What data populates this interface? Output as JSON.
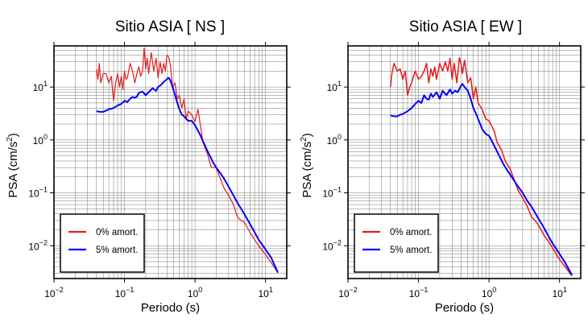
{
  "chart_data": [
    {
      "type": "line",
      "title": "Sitio ASIA [ NS ]",
      "xlabel": "Periodo (s)",
      "ylabel_text": "PSA (cm/s",
      "ylabel_sup": "2",
      "ylabel_close": ")",
      "x_scale": "log",
      "y_scale": "log",
      "xlim": [
        0.01,
        20
      ],
      "ylim": [
        0.0024,
        60
      ],
      "grid": true,
      "legend_position": "bottom-left",
      "x_ticks": [
        {
          "value": 0.01,
          "base": "10",
          "exp": "−2"
        },
        {
          "value": 0.1,
          "base": "10",
          "exp": "−1"
        },
        {
          "value": 1,
          "base": "10",
          "exp": "0"
        },
        {
          "value": 10,
          "base": "10",
          "exp": "1"
        }
      ],
      "y_ticks": [
        {
          "value": 0.01,
          "base": "10",
          "exp": "−2"
        },
        {
          "value": 0.1,
          "base": "10",
          "exp": "−1"
        },
        {
          "value": 1,
          "base": "10",
          "exp": "0"
        },
        {
          "value": 10,
          "base": "10",
          "exp": "1"
        }
      ],
      "series": [
        {
          "name": "0% amort.",
          "color": "#e41a1c",
          "width": 1.2,
          "x": [
            0.04,
            0.042,
            0.044,
            0.046,
            0.05,
            0.055,
            0.06,
            0.065,
            0.07,
            0.075,
            0.08,
            0.085,
            0.09,
            0.095,
            0.1,
            0.105,
            0.11,
            0.12,
            0.13,
            0.14,
            0.15,
            0.16,
            0.17,
            0.18,
            0.19,
            0.2,
            0.21,
            0.22,
            0.24,
            0.26,
            0.28,
            0.3,
            0.32,
            0.34,
            0.36,
            0.38,
            0.4,
            0.42,
            0.45,
            0.48,
            0.52,
            0.56,
            0.6,
            0.65,
            0.7,
            0.75,
            0.8,
            0.9,
            1.0,
            1.1,
            1.2,
            1.3,
            1.5,
            1.7,
            2.0,
            2.3,
            2.6,
            3.0,
            3.5,
            4.0,
            4.5,
            5.0,
            6.0,
            7.0,
            8.0,
            10.0,
            12.0,
            15.0
          ],
          "y": [
            22,
            14,
            28,
            12,
            18,
            18,
            12,
            16,
            5.5,
            12,
            18,
            10,
            16,
            9,
            20,
            14,
            15,
            28,
            20,
            12,
            18,
            24,
            16,
            20,
            55,
            22,
            35,
            18,
            45,
            20,
            35,
            15,
            30,
            18,
            28,
            20,
            40,
            38,
            25,
            10,
            12,
            6,
            7,
            4,
            6,
            2.5,
            3.5,
            3.0,
            2.2,
            3.8,
            1.8,
            0.9,
            0.55,
            0.3,
            0.3,
            0.18,
            0.12,
            0.09,
            0.06,
            0.035,
            0.03,
            0.028,
            0.018,
            0.013,
            0.01,
            0.0068,
            0.0048,
            0.0031
          ]
        },
        {
          "name": "5% amort.",
          "color": "#0000ff",
          "width": 2.0,
          "x": [
            0.04,
            0.045,
            0.05,
            0.055,
            0.06,
            0.065,
            0.07,
            0.08,
            0.09,
            0.1,
            0.11,
            0.12,
            0.13,
            0.14,
            0.15,
            0.16,
            0.18,
            0.2,
            0.22,
            0.25,
            0.28,
            0.3,
            0.33,
            0.36,
            0.4,
            0.42,
            0.44,
            0.47,
            0.5,
            0.55,
            0.6,
            0.65,
            0.7,
            0.75,
            0.8,
            0.9,
            1.0,
            1.1,
            1.2,
            1.4,
            1.6,
            1.8,
            2.0,
            2.5,
            3.0,
            3.5,
            4.0,
            5.0,
            6.0,
            7.0,
            8.0,
            10.0,
            12.0,
            15.0
          ],
          "y": [
            3.5,
            3.4,
            3.4,
            3.6,
            3.8,
            3.9,
            4.0,
            4.5,
            4.8,
            5.5,
            5.2,
            6.0,
            6.5,
            6.3,
            6.6,
            7.8,
            8.2,
            7.0,
            8.0,
            9.5,
            8.5,
            10.0,
            11.0,
            12.5,
            14.0,
            15.0,
            14.0,
            11.0,
            8.5,
            5.5,
            3.8,
            3.0,
            2.8,
            2.5,
            2.3,
            2.3,
            1.9,
            1.5,
            1.2,
            0.75,
            0.52,
            0.38,
            0.3,
            0.2,
            0.13,
            0.09,
            0.065,
            0.04,
            0.026,
            0.018,
            0.013,
            0.0085,
            0.006,
            0.0031
          ]
        }
      ]
    },
    {
      "type": "line",
      "title": "Sitio ASIA [ EW ]",
      "xlabel": "Periodo (s)",
      "ylabel_text": "PSA (cm/s",
      "ylabel_sup": "2",
      "ylabel_close": ")",
      "x_scale": "log",
      "y_scale": "log",
      "xlim": [
        0.01,
        20
      ],
      "ylim": [
        0.0024,
        60
      ],
      "grid": true,
      "legend_position": "bottom-left",
      "x_ticks": [
        {
          "value": 0.01,
          "base": "10",
          "exp": "−2"
        },
        {
          "value": 0.1,
          "base": "10",
          "exp": "−1"
        },
        {
          "value": 1,
          "base": "10",
          "exp": "0"
        },
        {
          "value": 10,
          "base": "10",
          "exp": "1"
        }
      ],
      "y_ticks": [
        {
          "value": 0.01,
          "base": "10",
          "exp": "−2"
        },
        {
          "value": 0.1,
          "base": "10",
          "exp": "−1"
        },
        {
          "value": 1,
          "base": "10",
          "exp": "0"
        },
        {
          "value": 10,
          "base": "10",
          "exp": "1"
        }
      ],
      "series": [
        {
          "name": "0% amort.",
          "color": "#e41a1c",
          "width": 1.5,
          "x": [
            0.04,
            0.042,
            0.045,
            0.05,
            0.055,
            0.06,
            0.065,
            0.07,
            0.075,
            0.08,
            0.085,
            0.09,
            0.1,
            0.11,
            0.12,
            0.13,
            0.14,
            0.15,
            0.16,
            0.17,
            0.18,
            0.2,
            0.22,
            0.24,
            0.26,
            0.28,
            0.3,
            0.32,
            0.35,
            0.38,
            0.4,
            0.42,
            0.45,
            0.5,
            0.55,
            0.6,
            0.65,
            0.7,
            0.8,
            0.9,
            1.0,
            1.1,
            1.2,
            1.3,
            1.5,
            1.7,
            2.0,
            2.3,
            2.6,
            3.0,
            3.5,
            4.0,
            4.5,
            5.0,
            6.0,
            7.0,
            8.0,
            10.0,
            12.0,
            15.0
          ],
          "y": [
            10,
            18,
            28,
            20,
            22,
            14,
            20,
            7,
            10,
            12,
            16,
            20,
            14,
            16,
            20,
            28,
            12,
            22,
            16,
            24,
            14,
            28,
            20,
            30,
            20,
            35,
            14,
            28,
            12,
            36,
            28,
            18,
            32,
            12,
            15,
            6,
            10,
            5,
            3.8,
            2.5,
            2.3,
            1.8,
            1.4,
            0.9,
            0.65,
            0.4,
            0.28,
            0.17,
            0.11,
            0.08,
            0.055,
            0.035,
            0.03,
            0.025,
            0.016,
            0.012,
            0.009,
            0.0055,
            0.004,
            0.0027
          ]
        },
        {
          "name": "5% amort.",
          "color": "#0000ff",
          "width": 2.0,
          "x": [
            0.04,
            0.045,
            0.05,
            0.055,
            0.06,
            0.07,
            0.08,
            0.09,
            0.1,
            0.11,
            0.12,
            0.13,
            0.14,
            0.15,
            0.16,
            0.18,
            0.2,
            0.22,
            0.25,
            0.28,
            0.3,
            0.33,
            0.36,
            0.4,
            0.42,
            0.45,
            0.5,
            0.55,
            0.6,
            0.65,
            0.7,
            0.75,
            0.8,
            0.9,
            1.0,
            1.1,
            1.2,
            1.4,
            1.6,
            1.8,
            2.0,
            2.5,
            3.0,
            3.5,
            4.0,
            5.0,
            6.0,
            7.0,
            8.0,
            10.0,
            12.0,
            15.0
          ],
          "y": [
            2.9,
            2.8,
            2.8,
            3.0,
            3.1,
            3.5,
            4.0,
            4.8,
            5.5,
            5.0,
            7.0,
            6.0,
            5.8,
            7.5,
            6.5,
            8.0,
            6.0,
            8.5,
            7.0,
            9.0,
            7.5,
            8.5,
            8.0,
            10.5,
            11.5,
            10.0,
            8.5,
            6.0,
            4.0,
            3.2,
            2.5,
            2.0,
            1.6,
            1.3,
            1.2,
            0.95,
            0.75,
            0.5,
            0.35,
            0.27,
            0.22,
            0.14,
            0.1,
            0.07,
            0.055,
            0.033,
            0.022,
            0.015,
            0.011,
            0.007,
            0.0048,
            0.0028
          ]
        }
      ]
    }
  ]
}
